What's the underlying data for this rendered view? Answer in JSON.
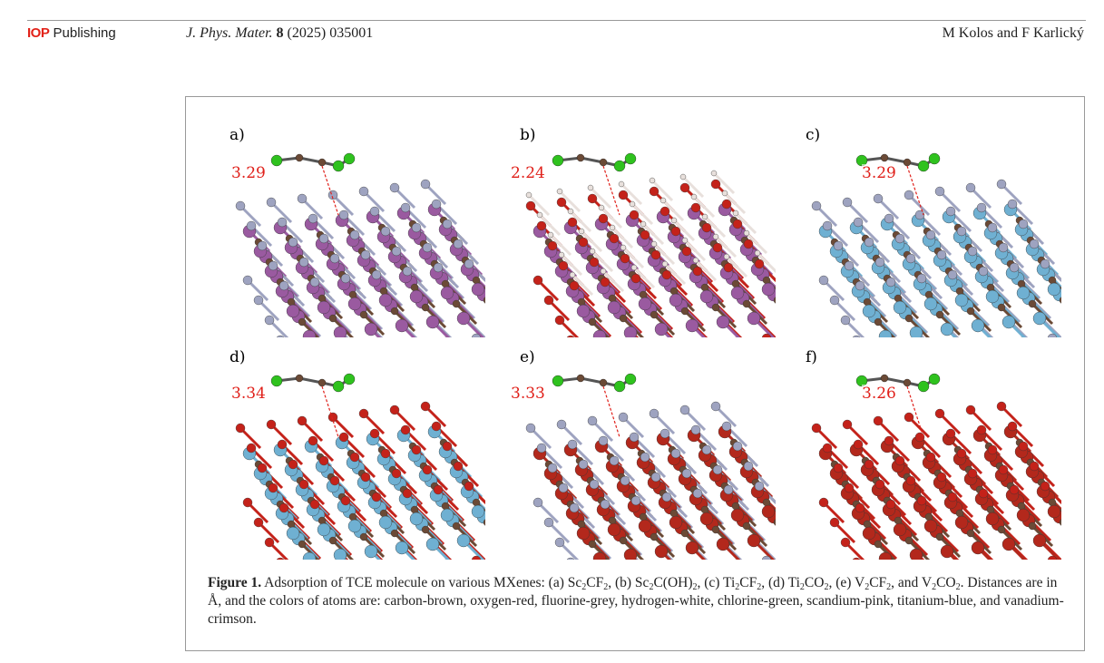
{
  "header": {
    "publisher_mark": "IOP",
    "publisher_text": "Publishing",
    "journal": "J. Phys. Mater.",
    "volume": "8",
    "year_article": "(2025) 035001",
    "authors": "M Kolos and F Karlický"
  },
  "atom_colors": {
    "carbon": "#6b4a36",
    "oxygen": "#c4221a",
    "fluorine": "#9ea3c0",
    "hydrogen": "#e8e0dc",
    "chlorine": "#2fc21e",
    "scandium": "#9a5aa0",
    "titanium": "#6fb0d2",
    "vanadium": "#b3281c"
  },
  "panels": [
    {
      "label": "a)",
      "distance": "3.29",
      "metal": "scandium",
      "surface": "fluorine",
      "extra": null
    },
    {
      "label": "b)",
      "distance": "2.24",
      "metal": "scandium",
      "surface": "oxygen",
      "extra": "hydrogen"
    },
    {
      "label": "c)",
      "distance": "3.29",
      "metal": "titanium",
      "surface": "fluorine",
      "extra": null
    },
    {
      "label": "d)",
      "distance": "3.34",
      "metal": "titanium",
      "surface": "oxygen",
      "extra": null
    },
    {
      "label": "e)",
      "distance": "3.33",
      "metal": "vanadium",
      "surface": "fluorine",
      "extra": null
    },
    {
      "label": "f)",
      "distance": "3.26",
      "metal": "vanadium",
      "surface": "oxygen",
      "extra": null
    }
  ],
  "caption": [
    {
      "t": "Figure 1.",
      "b": true
    },
    {
      "t": " Adsorption of TCE molecule on various MXenes: (a) Sc"
    },
    {
      "t": "2",
      "s": true
    },
    {
      "t": "CF"
    },
    {
      "t": "2",
      "s": true
    },
    {
      "t": ", (b) Sc"
    },
    {
      "t": "2",
      "s": true
    },
    {
      "t": "C(OH)"
    },
    {
      "t": "2",
      "s": true
    },
    {
      "t": ", (c) Ti"
    },
    {
      "t": "2",
      "s": true
    },
    {
      "t": "CF"
    },
    {
      "t": "2",
      "s": true
    },
    {
      "t": ", (d) Ti"
    },
    {
      "t": "2",
      "s": true
    },
    {
      "t": "CO"
    },
    {
      "t": "2",
      "s": true
    },
    {
      "t": ", (e) V"
    },
    {
      "t": "2",
      "s": true
    },
    {
      "t": "CF"
    },
    {
      "t": "2",
      "s": true
    },
    {
      "t": ", and V"
    },
    {
      "t": "2",
      "s": true
    },
    {
      "t": "CO"
    },
    {
      "t": "2",
      "s": true
    },
    {
      "t": ". Distances are in Å, and the colors of atoms are: carbon-brown, oxygen-red, fluorine-grey, hydrogen-white, chlorine-green, scandium-pink, titanium-blue, and vanadium-crimson."
    }
  ]
}
